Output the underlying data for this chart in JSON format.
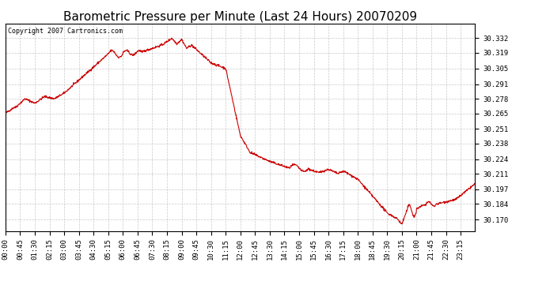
{
  "title": "Barometric Pressure per Minute (Last 24 Hours) 20070209",
  "copyright_text": "Copyright 2007 Cartronics.com",
  "line_color": "#cc0000",
  "background_color": "#ffffff",
  "plot_background": "#ffffff",
  "grid_color": "#bbbbbb",
  "yticks": [
    30.17,
    30.184,
    30.197,
    30.211,
    30.224,
    30.238,
    30.251,
    30.265,
    30.278,
    30.291,
    30.305,
    30.319,
    30.332
  ],
  "xtick_labels": [
    "00:00",
    "00:45",
    "01:30",
    "02:15",
    "03:00",
    "03:45",
    "04:30",
    "05:15",
    "06:00",
    "06:45",
    "07:30",
    "08:15",
    "09:00",
    "09:45",
    "10:30",
    "11:15",
    "12:00",
    "12:45",
    "13:30",
    "14:15",
    "15:00",
    "15:45",
    "16:30",
    "17:15",
    "18:00",
    "18:45",
    "19:30",
    "20:15",
    "21:00",
    "21:45",
    "22:30",
    "23:15"
  ],
  "ylim_min": 30.16,
  "ylim_max": 30.345,
  "title_fontsize": 11,
  "tick_fontsize": 6.5,
  "copyright_fontsize": 6
}
